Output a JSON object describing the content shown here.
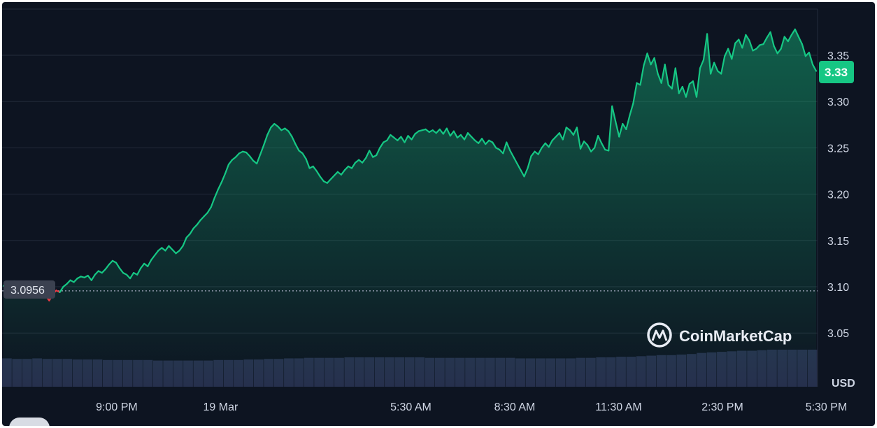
{
  "chart_data": {
    "type": "area",
    "currency_label": "USD",
    "y_ticks": [
      "3.05",
      "3.10",
      "3.15",
      "3.20",
      "3.25",
      "3.30",
      "3.35"
    ],
    "y_tick_values": [
      3.05,
      3.1,
      3.15,
      3.2,
      3.25,
      3.3,
      3.35
    ],
    "ylim": [
      3.0,
      3.4
    ],
    "x_ticks": [
      "9:00 PM",
      "19 Mar",
      "5:30 AM",
      "8:30 AM",
      "11:30 AM",
      "2:30 PM",
      "5:30 PM"
    ],
    "x_tick_positions": [
      0.138,
      0.263,
      0.492,
      0.617,
      0.742,
      0.867,
      0.992
    ],
    "open_price": 3.0956,
    "open_price_label": "3.0956",
    "current_price": 3.33,
    "current_price_label": "3.33",
    "series": [
      {
        "values": [
          3.101,
          3.098,
          3.102,
          3.106,
          3.103,
          3.099,
          3.101,
          3.097,
          3.093,
          3.089,
          3.092,
          3.097,
          3.09,
          3.085,
          3.092,
          3.096,
          3.094,
          3.1,
          3.103,
          3.107,
          3.105,
          3.109,
          3.111,
          3.11,
          3.112,
          3.107,
          3.113,
          3.117,
          3.115,
          3.119,
          3.124,
          3.128,
          3.126,
          3.12,
          3.115,
          3.113,
          3.109,
          3.115,
          3.113,
          3.12,
          3.125,
          3.122,
          3.129,
          3.134,
          3.139,
          3.142,
          3.139,
          3.144,
          3.14,
          3.136,
          3.139,
          3.144,
          3.153,
          3.157,
          3.163,
          3.167,
          3.172,
          3.176,
          3.18,
          3.186,
          3.196,
          3.205,
          3.213,
          3.222,
          3.232,
          3.237,
          3.24,
          3.244,
          3.246,
          3.245,
          3.241,
          3.236,
          3.233,
          3.243,
          3.253,
          3.264,
          3.272,
          3.276,
          3.273,
          3.269,
          3.271,
          3.268,
          3.262,
          3.254,
          3.247,
          3.244,
          3.238,
          3.228,
          3.23,
          3.225,
          3.219,
          3.214,
          3.212,
          3.216,
          3.22,
          3.224,
          3.221,
          3.226,
          3.23,
          3.228,
          3.234,
          3.237,
          3.234,
          3.239,
          3.247,
          3.24,
          3.242,
          3.25,
          3.256,
          3.258,
          3.264,
          3.261,
          3.258,
          3.262,
          3.256,
          3.263,
          3.259,
          3.265,
          3.268,
          3.269,
          3.27,
          3.267,
          3.269,
          3.266,
          3.27,
          3.265,
          3.271,
          3.263,
          3.268,
          3.261,
          3.264,
          3.259,
          3.266,
          3.262,
          3.258,
          3.255,
          3.26,
          3.254,
          3.258,
          3.256,
          3.25,
          3.248,
          3.244,
          3.256,
          3.247,
          3.24,
          3.233,
          3.226,
          3.219,
          3.228,
          3.241,
          3.246,
          3.243,
          3.25,
          3.255,
          3.251,
          3.258,
          3.262,
          3.266,
          3.259,
          3.272,
          3.269,
          3.264,
          3.272,
          3.249,
          3.257,
          3.253,
          3.246,
          3.25,
          3.263,
          3.255,
          3.248,
          3.247,
          3.295,
          3.278,
          3.262,
          3.276,
          3.27,
          3.285,
          3.298,
          3.32,
          3.318,
          3.339,
          3.352,
          3.34,
          3.347,
          3.33,
          3.32,
          3.34,
          3.318,
          3.314,
          3.336,
          3.309,
          3.316,
          3.305,
          3.319,
          3.322,
          3.305,
          3.336,
          3.345,
          3.373,
          3.33,
          3.342,
          3.333,
          3.33,
          3.349,
          3.357,
          3.346,
          3.363,
          3.367,
          3.358,
          3.372,
          3.366,
          3.355,
          3.357,
          3.361,
          3.362,
          3.369,
          3.375,
          3.36,
          3.352,
          3.357,
          3.37,
          3.365,
          3.372,
          3.378,
          3.37,
          3.362,
          3.349,
          3.353,
          3.34,
          3.333
        ]
      }
    ],
    "volume": [
      0.52,
      0.51,
      0.51,
      0.52,
      0.51,
      0.51,
      0.51,
      0.5,
      0.5,
      0.5,
      0.49,
      0.49,
      0.49,
      0.49,
      0.49,
      0.48,
      0.48,
      0.48,
      0.48,
      0.48,
      0.48,
      0.49,
      0.49,
      0.49,
      0.5,
      0.5,
      0.51,
      0.51,
      0.52,
      0.52,
      0.53,
      0.53,
      0.53,
      0.53,
      0.54,
      0.54,
      0.54,
      0.54,
      0.54,
      0.54,
      0.54,
      0.54,
      0.53,
      0.53,
      0.53,
      0.53,
      0.53,
      0.53,
      0.53,
      0.53,
      0.53,
      0.52,
      0.52,
      0.52,
      0.52,
      0.52,
      0.52,
      0.53,
      0.53,
      0.54,
      0.54,
      0.55,
      0.55,
      0.56,
      0.57,
      0.58,
      0.58,
      0.59,
      0.6,
      0.62,
      0.63,
      0.64,
      0.65,
      0.66,
      0.66,
      0.67,
      0.68,
      0.68,
      0.68,
      0.68,
      0.68
    ],
    "grid": true,
    "watermark": "CoinMarketCap"
  }
}
